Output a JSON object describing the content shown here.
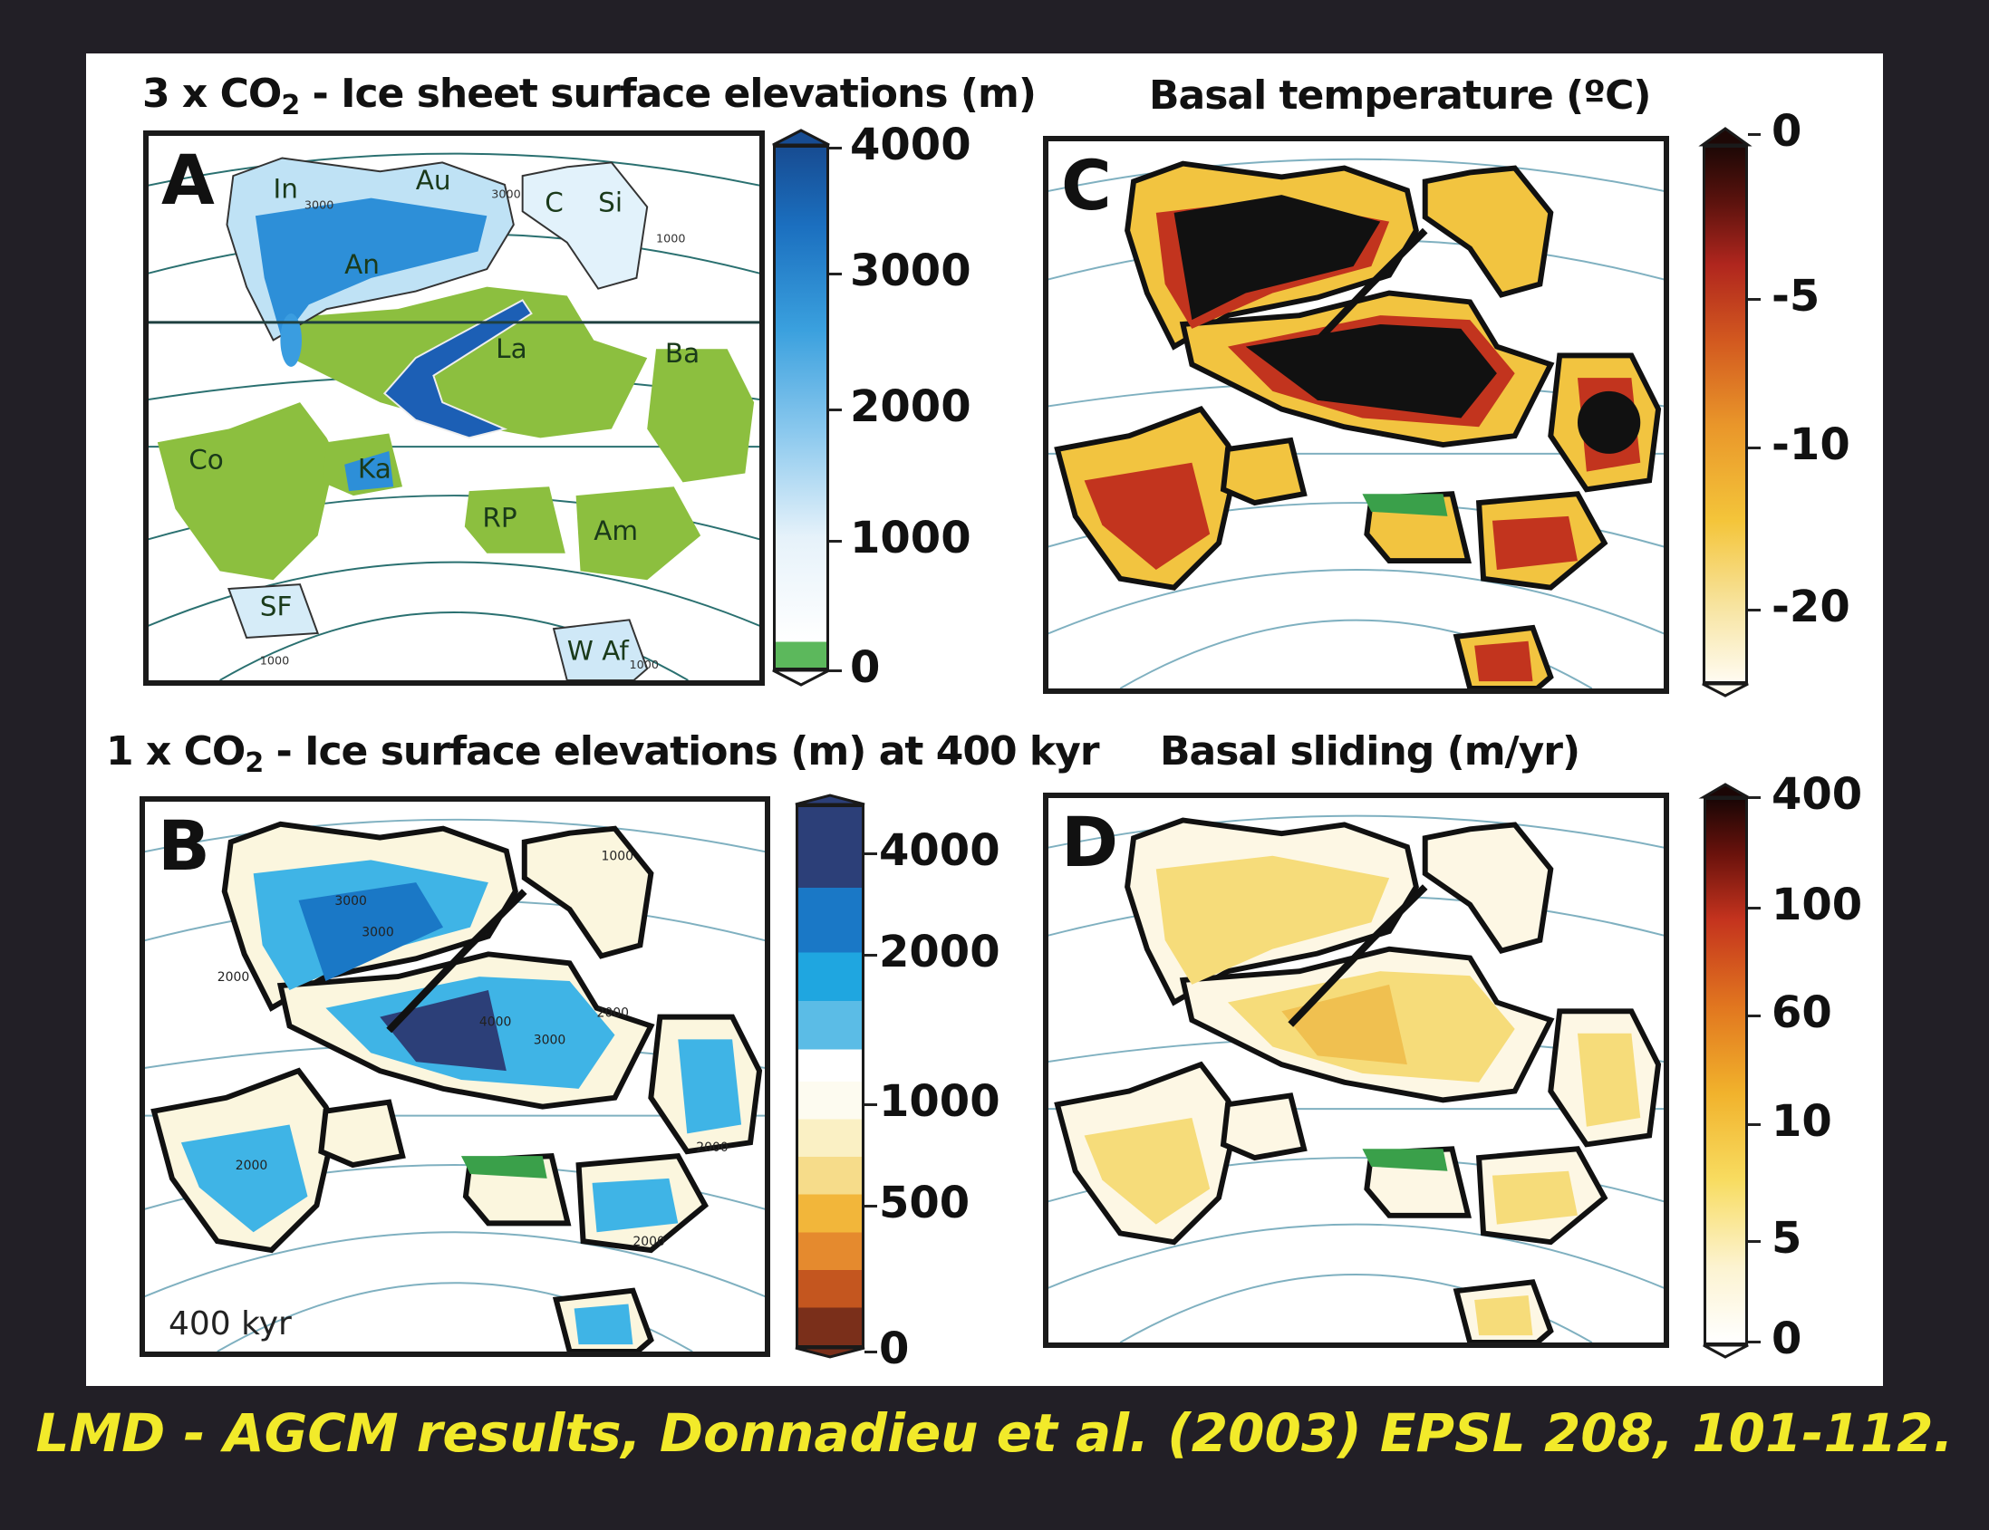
{
  "panels": {
    "A": {
      "letter": "A",
      "title_pre": "3 x CO",
      "title_sub": "2",
      "title_post": " - Ice sheet surface elevations (m)",
      "colorbar_ticks": [
        "4000",
        "3000",
        "2000",
        "1000",
        "0"
      ],
      "regions": [
        "In",
        "Au",
        "C",
        "Si",
        "An",
        "La",
        "Ba",
        "Ka",
        "Co",
        "RP",
        "Am",
        "SF",
        "W Af"
      ],
      "contours": [
        "3000",
        "3000",
        "1000",
        "1000",
        "1000"
      ]
    },
    "B": {
      "letter": "B",
      "title_pre": "1 x CO",
      "title_sub": "2",
      "title_post": " - Ice surface elevations (m) at 400 kyr",
      "colorbar_ticks": [
        "4000",
        "2000",
        "1000",
        "500",
        "0"
      ],
      "contours": [
        "3000",
        "3000",
        "2000",
        "4000",
        "3000",
        "2000",
        "2000",
        "2000",
        "2000",
        "1000"
      ],
      "time_label": "400 kyr"
    },
    "C": {
      "letter": "C",
      "title": "Basal temperature (ºC)",
      "colorbar_ticks": [
        "0",
        "-5",
        "-10",
        "-20"
      ]
    },
    "D": {
      "letter": "D",
      "title": "Basal sliding (m/yr)",
      "colorbar_ticks": [
        "400",
        "100",
        "60",
        "10",
        "5",
        "0"
      ]
    }
  },
  "colors": {
    "background": "#221f26",
    "land_green": "#8cbf3f",
    "ice_blue": "#1e78c8",
    "footer_yellow": "#f2ea2a"
  },
  "footer": "LMD - AGCM results, Donnadieu et al. (2003) EPSL 208, 101-112."
}
